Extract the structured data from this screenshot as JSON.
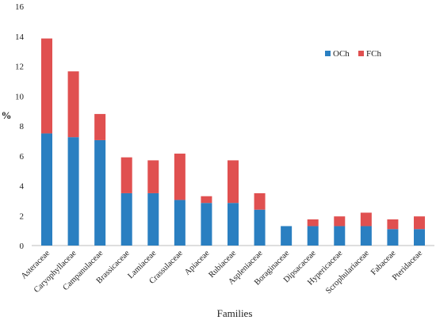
{
  "chart_data": {
    "type": "bar",
    "stacked": true,
    "xlabel": "Families",
    "ylabel": "%",
    "ylim": [
      0,
      16
    ],
    "yticks": [
      0,
      2,
      4,
      6,
      8,
      10,
      12,
      14,
      16
    ],
    "grid": false,
    "legend_position": "top-right",
    "categories": [
      "Asteraceae",
      "Caryophyllaceae",
      "Campanulaceae",
      "Brassicaceae",
      "Lamiaceae",
      "Crassulaceae",
      "Apiaceae",
      "Rubiaceae",
      "Aspleniaceae",
      "Boraginaceae",
      "Dipsacaceae",
      "Hypericaceae",
      "Scrophulariaceae",
      "Fabaceae",
      "Pteridaceae"
    ],
    "series": [
      {
        "name": "OCh",
        "color": "#2a7fc1",
        "values": [
          7.5,
          7.25,
          7.05,
          3.5,
          3.5,
          3.05,
          2.85,
          2.85,
          2.4,
          1.3,
          1.3,
          1.3,
          1.3,
          1.1,
          1.1
        ]
      },
      {
        "name": "FCh",
        "color": "#e05050",
        "values": [
          6.35,
          4.4,
          1.75,
          2.4,
          2.2,
          3.1,
          0.45,
          2.85,
          1.1,
          0,
          0.45,
          0.65,
          0.9,
          0.65,
          0.85
        ]
      }
    ]
  }
}
